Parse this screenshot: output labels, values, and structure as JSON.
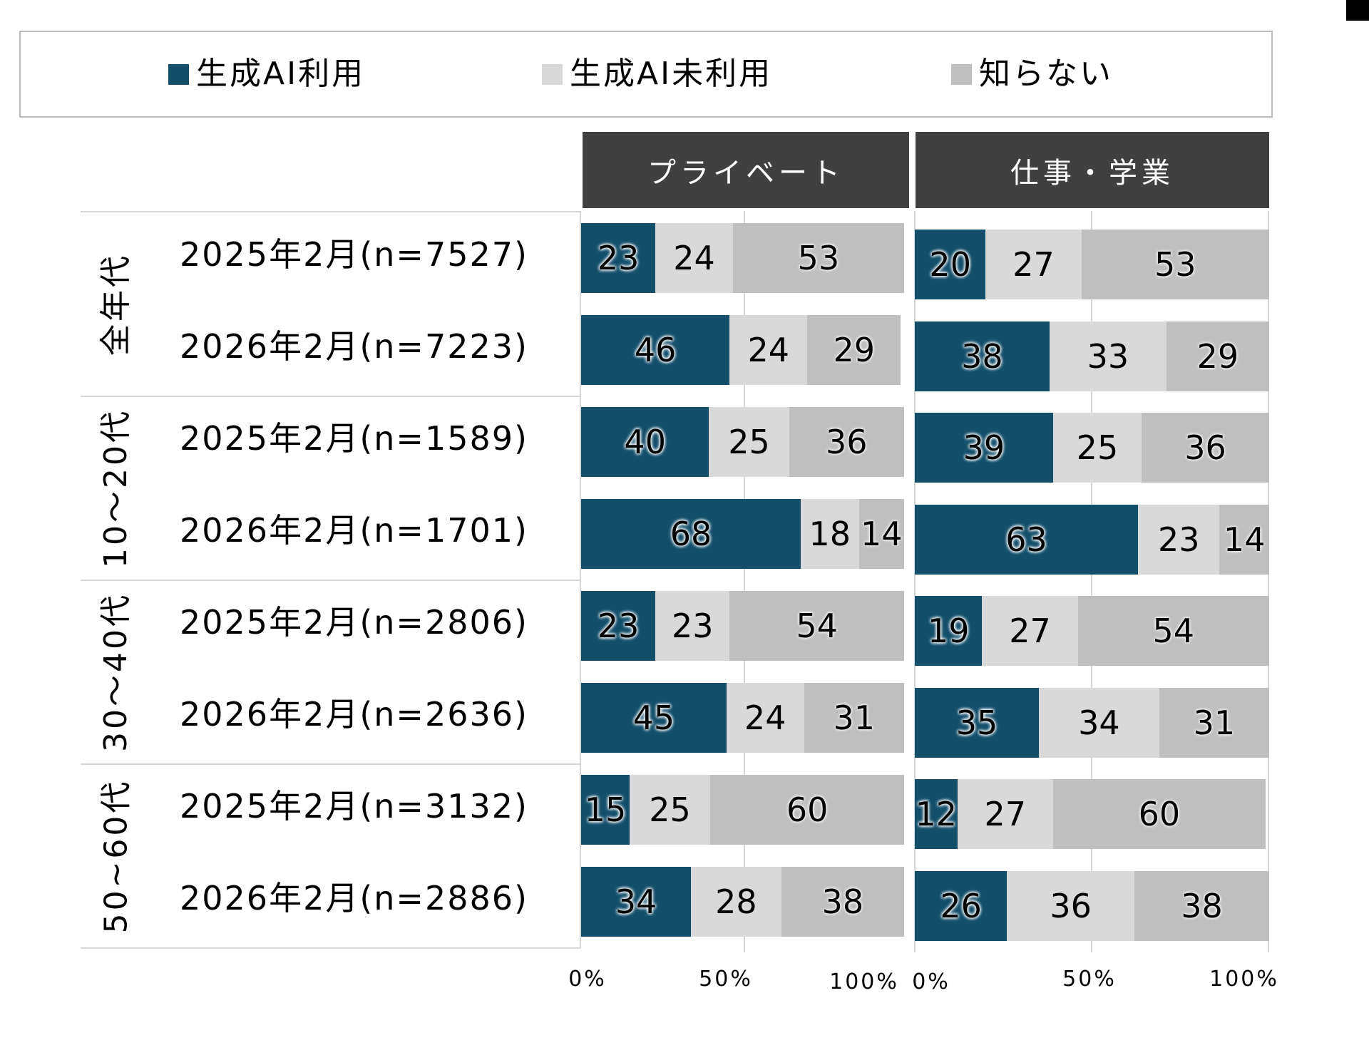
{
  "legend": {
    "items": [
      {
        "label": "生成AI利用",
        "color": "#134f6b"
      },
      {
        "label": "生成AI未利用",
        "color": "#d9d9d9"
      },
      {
        "label": "知らない",
        "color": "#bfbfbf"
      }
    ]
  },
  "panels": [
    {
      "title": "プライベート"
    },
    {
      "title": "仕事・学業"
    }
  ],
  "groups": [
    {
      "label": "全年代",
      "rows": [
        "2025年2月(n=7527)",
        "2026年2月(n=7223)"
      ]
    },
    {
      "label": "10～20代",
      "rows": [
        "2025年2月(n=1589)",
        "2026年2月(n=1701)"
      ]
    },
    {
      "label": "30～40代",
      "rows": [
        "2025年2月(n=2806)",
        "2026年2月(n=2636)"
      ]
    },
    {
      "label": "50~60代",
      "rows": [
        "2025年2月(n=3132)",
        "2026年2月(n=2886)"
      ]
    }
  ],
  "axis": {
    "ticks": [
      "0%",
      "50%",
      "100%"
    ]
  },
  "chart_data": [
    {
      "type": "bar",
      "orientation": "horizontal",
      "stacked": true,
      "title": "プライベート",
      "categories": [
        "全年代 2025年2月(n=7527)",
        "全年代 2026年2月(n=7223)",
        "10～20代 2025年2月(n=1589)",
        "10～20代 2026年2月(n=1701)",
        "30～40代 2025年2月(n=2806)",
        "30～40代 2026年2月(n=2636)",
        "50~60代 2025年2月(n=3132)",
        "50~60代 2026年2月(n=2886)"
      ],
      "series": [
        {
          "name": "生成AI利用",
          "color": "#134f6b",
          "values": [
            23,
            46,
            40,
            68,
            23,
            45,
            15,
            34
          ]
        },
        {
          "name": "生成AI未利用",
          "color": "#d9d9d9",
          "values": [
            24,
            24,
            25,
            18,
            23,
            24,
            25,
            28
          ]
        },
        {
          "name": "知らない",
          "color": "#bfbfbf",
          "values": [
            53,
            29,
            36,
            14,
            54,
            31,
            60,
            38
          ]
        }
      ],
      "xlabel": "",
      "ylabel": "",
      "xlim": [
        0,
        100
      ],
      "xticks": [
        "0%",
        "50%",
        "100%"
      ],
      "grid": true,
      "legend_position": "top"
    },
    {
      "type": "bar",
      "orientation": "horizontal",
      "stacked": true,
      "title": "仕事・学業",
      "categories": [
        "全年代 2025年2月(n=7527)",
        "全年代 2026年2月(n=7223)",
        "10～20代 2025年2月(n=1589)",
        "10～20代 2026年2月(n=1701)",
        "30～40代 2025年2月(n=2806)",
        "30～40代 2026年2月(n=2636)",
        "50~60代 2025年2月(n=3132)",
        "50~60代 2026年2月(n=2886)"
      ],
      "series": [
        {
          "name": "生成AI利用",
          "color": "#134f6b",
          "values": [
            20,
            38,
            39,
            63,
            19,
            35,
            12,
            26
          ]
        },
        {
          "name": "生成AI未利用",
          "color": "#d9d9d9",
          "values": [
            27,
            33,
            25,
            23,
            27,
            34,
            27,
            36
          ]
        },
        {
          "name": "知らない",
          "color": "#bfbfbf",
          "values": [
            53,
            29,
            36,
            14,
            54,
            31,
            60,
            38
          ]
        }
      ],
      "xlabel": "",
      "ylabel": "",
      "xlim": [
        0,
        100
      ],
      "xticks": [
        "0%",
        "50%",
        "100%"
      ],
      "grid": true,
      "legend_position": "top"
    }
  ]
}
